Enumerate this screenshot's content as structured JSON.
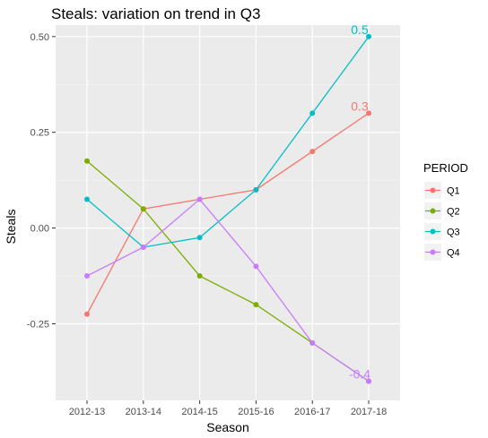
{
  "chart_data": {
    "type": "line",
    "title": "Steals: variation on trend in Q3",
    "xlabel": "Season",
    "ylabel": "Steals",
    "categories": [
      "2012-13",
      "2013-14",
      "2014-15",
      "2015-16",
      "2016-17",
      "2017-18"
    ],
    "ylim": [
      -0.45,
      0.53
    ],
    "yticks": [
      -0.25,
      0,
      0.25,
      0.5
    ],
    "ytick_labels": [
      "-0.25",
      "0.00",
      "0.25",
      "0.50"
    ],
    "grid": true,
    "legend": {
      "title": "PERIOD",
      "position": "right"
    },
    "series": [
      {
        "name": "Q1",
        "color": "#F8766D",
        "values": [
          -0.225,
          0.05,
          0.075,
          0.1,
          0.2,
          0.3
        ]
      },
      {
        "name": "Q2",
        "color": "#7CAE00",
        "values": [
          0.175,
          0.05,
          -0.125,
          -0.2,
          -0.3,
          -0.4
        ]
      },
      {
        "name": "Q3",
        "color": "#00BFC4",
        "values": [
          0.075,
          -0.05,
          -0.025,
          0.1,
          0.3,
          0.5
        ]
      },
      {
        "name": "Q4",
        "color": "#C77CFF",
        "values": [
          -0.125,
          -0.05,
          0.075,
          -0.1,
          -0.3,
          -0.4
        ]
      }
    ],
    "annotations": [
      {
        "text": "0.3",
        "series": "Q1",
        "x": "2017-18",
        "y": 0.3
      },
      {
        "text": "0.5",
        "series": "Q3",
        "x": "2017-18",
        "y": 0.5
      },
      {
        "text": "-0.4",
        "series": "Q4",
        "x": "2017-18",
        "y": -0.4
      }
    ]
  }
}
